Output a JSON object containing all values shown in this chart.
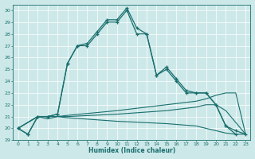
{
  "xlabel": "Humidex (Indice chaleur)",
  "xlim": [
    -0.5,
    23.5
  ],
  "ylim": [
    19,
    30.5
  ],
  "yticks": [
    19,
    20,
    21,
    22,
    23,
    24,
    25,
    26,
    27,
    28,
    29,
    30
  ],
  "xticks": [
    0,
    1,
    2,
    3,
    4,
    5,
    6,
    7,
    8,
    9,
    10,
    11,
    12,
    13,
    14,
    15,
    16,
    17,
    18,
    19,
    20,
    21,
    22,
    23
  ],
  "bg_color": "#cde8e8",
  "line_color": "#1a6e6e",
  "grid_color": "#ffffff",
  "line1_x": [
    0,
    1,
    2,
    3,
    4,
    5,
    6,
    7,
    8,
    9,
    10,
    11,
    12,
    13,
    14,
    15,
    16,
    17,
    18,
    19,
    20,
    21,
    22
  ],
  "line1_y": [
    20,
    19.5,
    21,
    21,
    21.2,
    25.5,
    27,
    27,
    28,
    29,
    29,
    30,
    28,
    28,
    24.5,
    25,
    24,
    23,
    23,
    23,
    22,
    20.2,
    19.5
  ],
  "line2_x": [
    0,
    1,
    2,
    3,
    4,
    5,
    6,
    7,
    8,
    9,
    10,
    11,
    12,
    13,
    14,
    15,
    16,
    17,
    18,
    19,
    20,
    21,
    22,
    23
  ],
  "line2_y": [
    20,
    19.5,
    21,
    21,
    21.2,
    25.5,
    27,
    27.2,
    28.2,
    29.2,
    29.2,
    30.2,
    28.5,
    28,
    24.5,
    25.2,
    24.2,
    23.2,
    23,
    23,
    22,
    20.2,
    19.8,
    19.5
  ],
  "flat1_x": [
    0,
    2,
    3,
    4,
    5,
    10,
    15,
    18,
    19,
    20,
    21,
    22,
    23
  ],
  "flat1_y": [
    20,
    21,
    21,
    21,
    21.1,
    21.5,
    22,
    22.3,
    22.5,
    22.8,
    23,
    23,
    19.5
  ],
  "flat2_x": [
    0,
    2,
    3,
    4,
    5,
    10,
    15,
    18,
    19,
    20,
    21,
    22,
    23
  ],
  "flat2_y": [
    20,
    21,
    21,
    21,
    21,
    21.2,
    21.5,
    21.8,
    22,
    22,
    21.5,
    20.5,
    19.5
  ],
  "flat3_x": [
    0,
    2,
    3,
    4,
    5,
    10,
    15,
    18,
    19,
    20,
    21,
    22,
    23
  ],
  "flat3_y": [
    20,
    21,
    20.8,
    21,
    20.9,
    20.6,
    20.4,
    20.2,
    20,
    19.8,
    19.6,
    19.5,
    19.5
  ]
}
